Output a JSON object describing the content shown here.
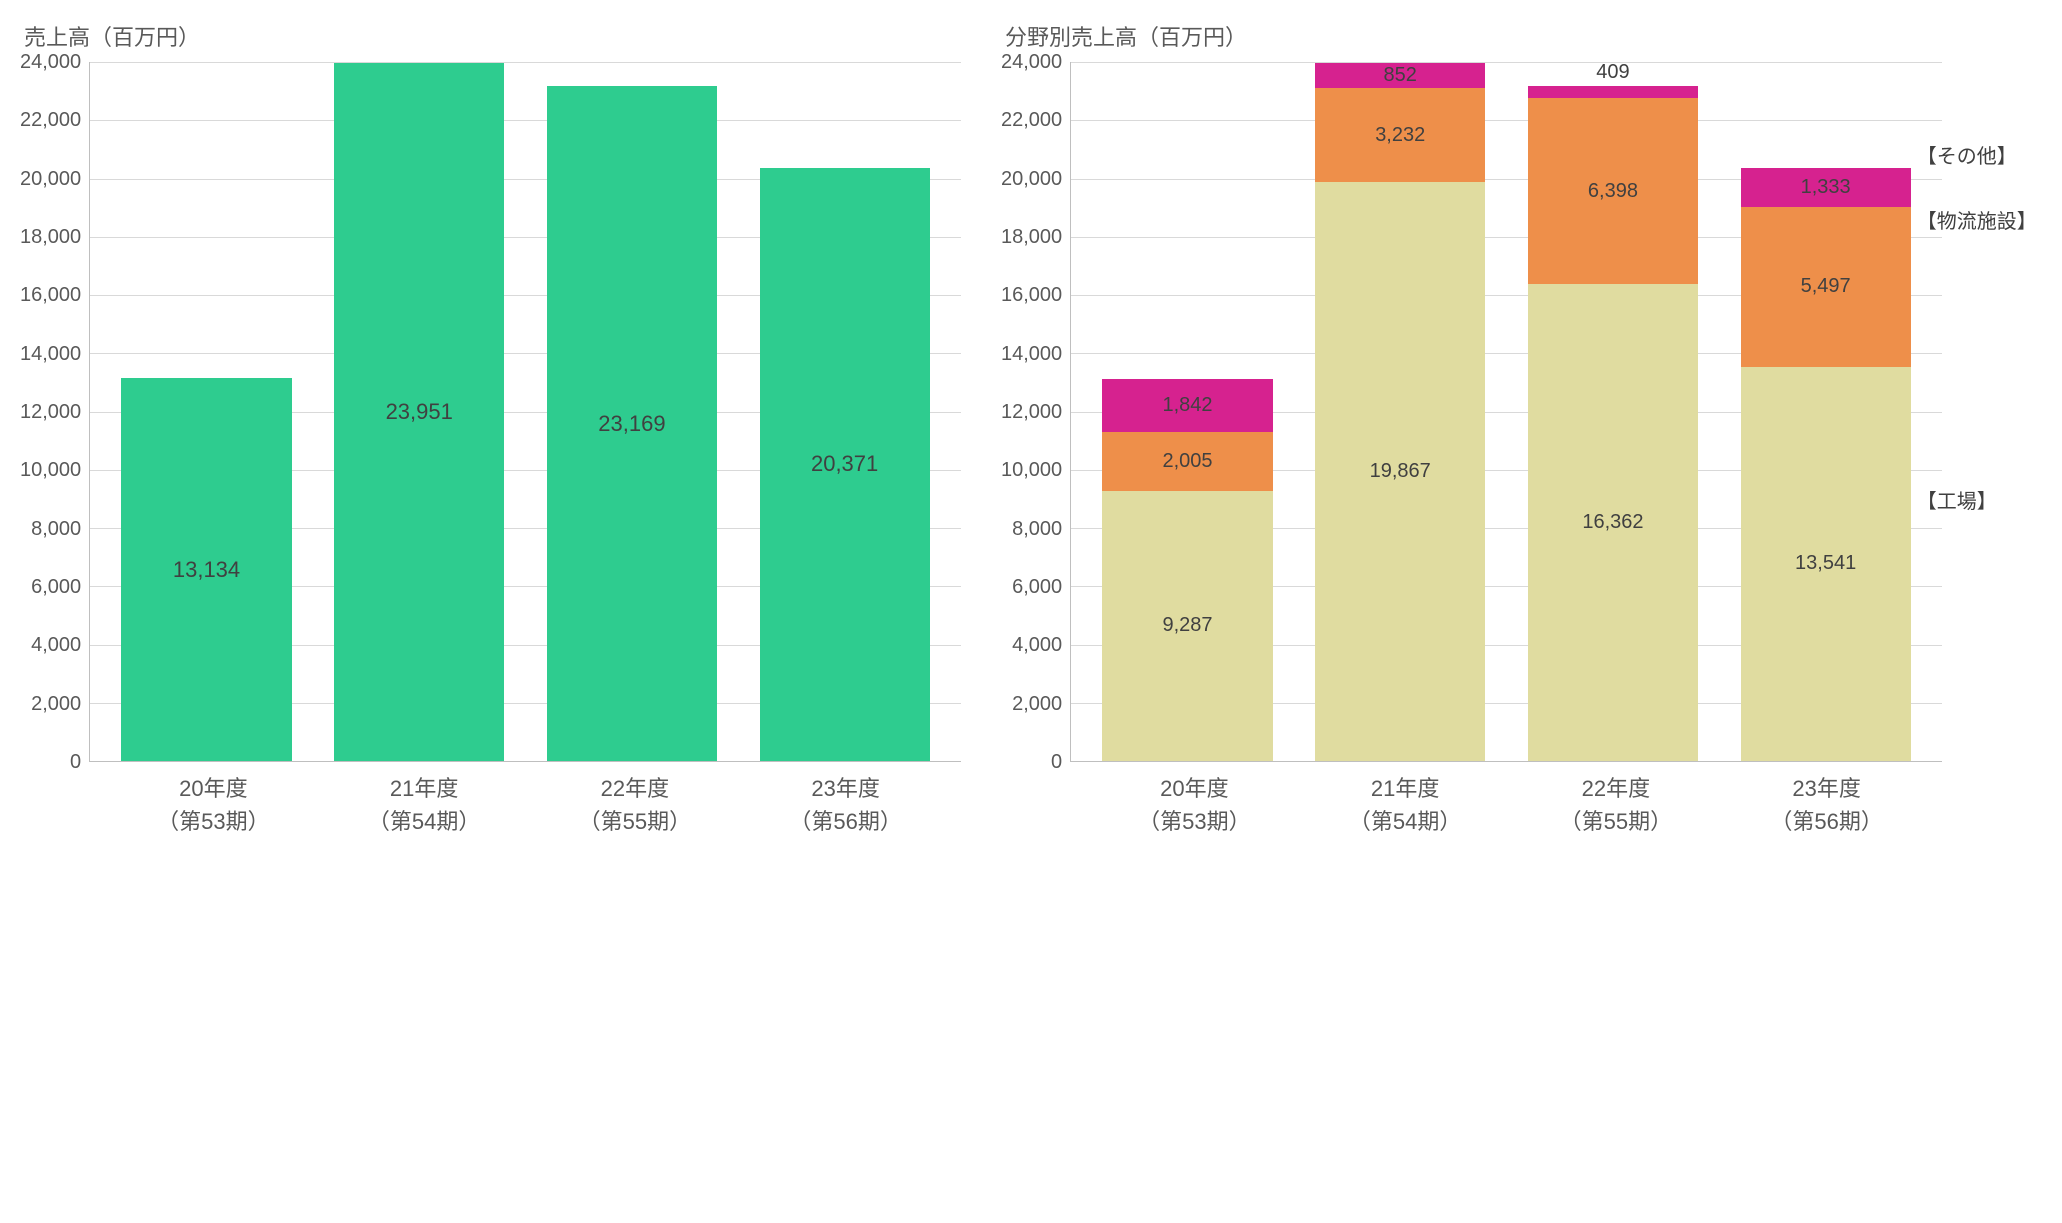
{
  "left_chart": {
    "type": "bar",
    "title": "売上高（百万円）",
    "ymax": 24000,
    "ytick_step": 2000,
    "yticks": [
      "24,000",
      "22,000",
      "20,000",
      "18,000",
      "16,000",
      "14,000",
      "12,000",
      "10,000",
      "8,000",
      "6,000",
      "4,000",
      "2,000",
      "0"
    ],
    "bar_color": "#2ecc8f",
    "grid_color": "#d9d9d9",
    "axis_color": "#bfbfbf",
    "background_color": "#ffffff",
    "title_fontsize": 22,
    "label_fontsize": 22,
    "tick_fontsize": 20,
    "bars": [
      {
        "label_line1": "20年度",
        "label_line2": "（第53期）",
        "value": 13134,
        "value_label": "13,134"
      },
      {
        "label_line1": "21年度",
        "label_line2": "（第54期）",
        "value": 23951,
        "value_label": "23,951"
      },
      {
        "label_line1": "22年度",
        "label_line2": "（第55期）",
        "value": 23169,
        "value_label": "23,169"
      },
      {
        "label_line1": "23年度",
        "label_line2": "（第56期）",
        "value": 20371,
        "value_label": "20,371"
      }
    ]
  },
  "right_chart": {
    "type": "stacked-bar",
    "title": "分野別売上高（百万円）",
    "ymax": 24000,
    "ytick_step": 2000,
    "yticks": [
      "24,000",
      "22,000",
      "20,000",
      "18,000",
      "16,000",
      "14,000",
      "12,000",
      "10,000",
      "8,000",
      "6,000",
      "4,000",
      "2,000",
      "0"
    ],
    "grid_color": "#d9d9d9",
    "axis_color": "#bfbfbf",
    "background_color": "#ffffff",
    "title_fontsize": 22,
    "label_fontsize": 22,
    "tick_fontsize": 20,
    "segments": [
      {
        "key": "factory",
        "name": "【工場】",
        "color": "#e0dca0"
      },
      {
        "key": "logistics",
        "name": "【物流施設】",
        "color": "#ee8f4a"
      },
      {
        "key": "other",
        "name": "【その他】",
        "color": "#d6228f"
      }
    ],
    "bars": [
      {
        "label_line1": "20年度",
        "label_line2": "（第53期）",
        "factory": 9287,
        "factory_label": "9,287",
        "logistics": 2005,
        "logistics_label": "2,005",
        "other": 1842,
        "other_label": "1,842"
      },
      {
        "label_line1": "21年度",
        "label_line2": "（第54期）",
        "factory": 19867,
        "factory_label": "19,867",
        "logistics": 3232,
        "logistics_label": "3,232",
        "other": 852,
        "other_label": "852"
      },
      {
        "label_line1": "22年度",
        "label_line2": "（第55期）",
        "factory": 16362,
        "factory_label": "16,362",
        "logistics": 6398,
        "logistics_label": "6,398",
        "other": 409,
        "other_label": "409"
      },
      {
        "label_line1": "23年度",
        "label_line2": "（第56期）",
        "factory": 13541,
        "factory_label": "13,541",
        "logistics": 5497,
        "logistics_label": "5,497",
        "other": 1333,
        "other_label": "1,333"
      }
    ]
  }
}
